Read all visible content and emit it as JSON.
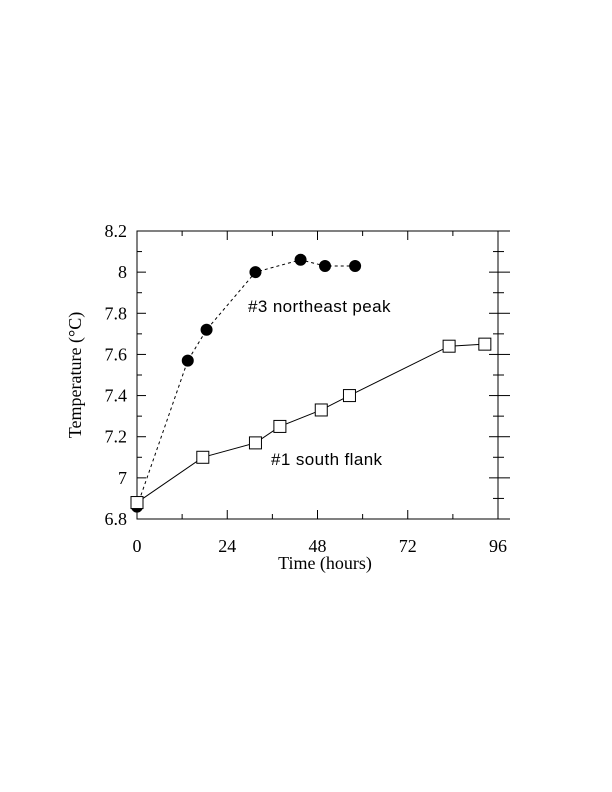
{
  "chart_data": {
    "type": "line",
    "title": "",
    "xlabel": "Time (hours)",
    "ylabel": "Temperature (°C)",
    "xlim": [
      0,
      96
    ],
    "ylim": [
      6.8,
      8.2
    ],
    "x_ticks": [
      "0",
      "24",
      "48",
      "72",
      "96"
    ],
    "y_ticks": [
      "6.8",
      "7",
      "7.2",
      "7.4",
      "7.6",
      "7.8",
      "8",
      "8.2"
    ],
    "grid": false,
    "series": [
      {
        "name": "#3 northeast peak",
        "line_style": "dashed",
        "marker": "filled-circle",
        "points": [
          {
            "x": 0,
            "y": 6.86
          },
          {
            "x": 13.5,
            "y": 7.57
          },
          {
            "x": 18.5,
            "y": 7.72
          },
          {
            "x": 31.5,
            "y": 8.0
          },
          {
            "x": 43.5,
            "y": 8.06
          },
          {
            "x": 50,
            "y": 8.03
          },
          {
            "x": 58,
            "y": 8.03
          }
        ]
      },
      {
        "name": "#1 south flank",
        "line_style": "solid",
        "marker": "open-square",
        "points": [
          {
            "x": 0,
            "y": 6.88
          },
          {
            "x": 17.5,
            "y": 7.1
          },
          {
            "x": 31.5,
            "y": 7.17
          },
          {
            "x": 38,
            "y": 7.25
          },
          {
            "x": 49,
            "y": 7.33
          },
          {
            "x": 56.5,
            "y": 7.4
          },
          {
            "x": 83,
            "y": 7.64
          },
          {
            "x": 92.5,
            "y": 7.65
          }
        ]
      }
    ]
  }
}
